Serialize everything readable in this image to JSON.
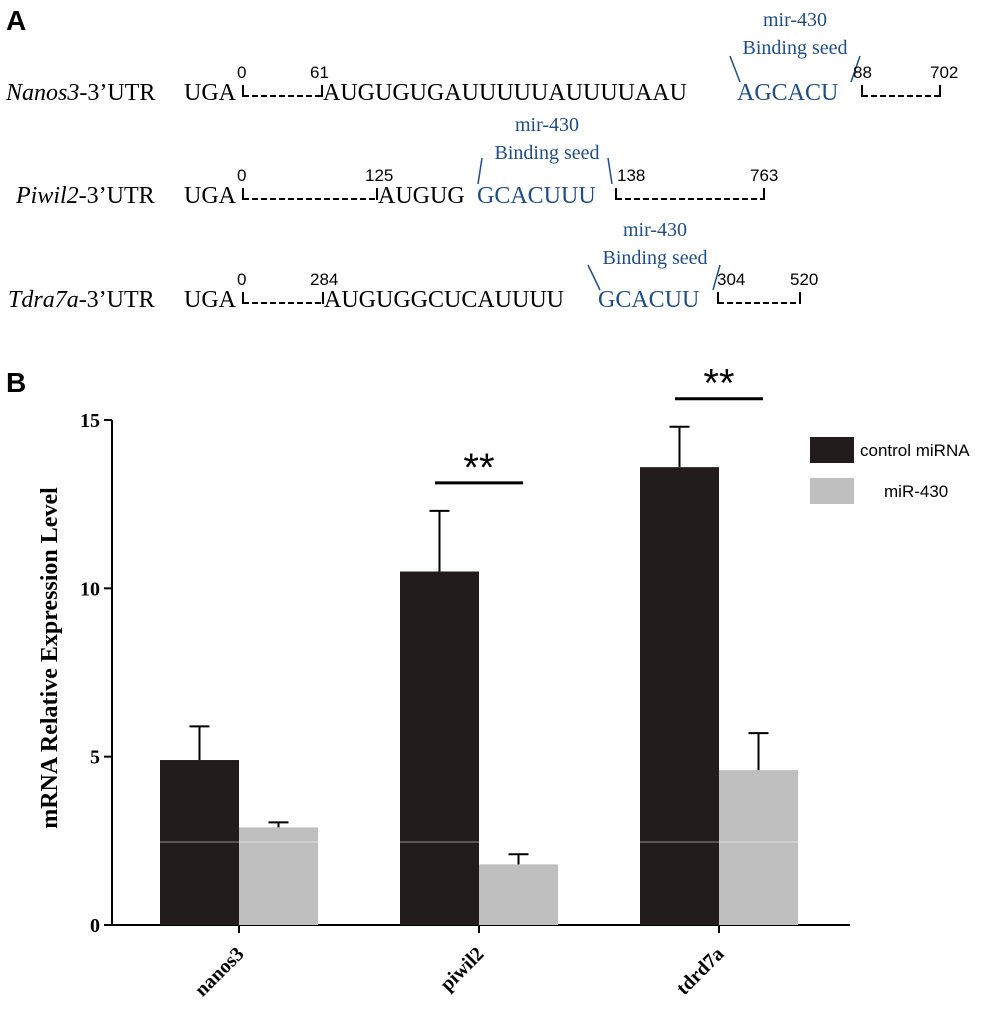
{
  "panel_a": {
    "label": "A",
    "rows": [
      {
        "gene": "Nanos3",
        "gene_suffix": "-3’UTR",
        "prefix": "UGA",
        "middle": "AUGUGUGAUUUUUAUUUUAAU",
        "seed": "AGCACU",
        "pos_start": "0",
        "pos_mid": "61",
        "pos_seed_end": "88",
        "pos_end": "702",
        "seed_label_1": "mir-430",
        "seed_label_2": "Binding seed"
      },
      {
        "gene": "Piwil2",
        "gene_suffix": "-3’UTR",
        "prefix": "UGA",
        "middle": "AUGUG",
        "seed": "GCACUUU",
        "pos_start": "0",
        "pos_mid": "125",
        "pos_seed_end": "138",
        "pos_end": "763",
        "seed_label_1": "mir-430",
        "seed_label_2": "Binding seed"
      },
      {
        "gene": "Tdra7a",
        "gene_suffix": "-3’UTR",
        "prefix": "UGA",
        "middle": "AUGUGGCUCAUUUU",
        "seed": "GCACUU",
        "pos_start": "0",
        "pos_mid": "284",
        "pos_seed_end": "304",
        "pos_end": "520",
        "seed_label_1": "mir-430",
        "seed_label_2": "Binding seed"
      }
    ]
  },
  "panel_b": {
    "label": "B"
  },
  "colors": {
    "control": "#231c1c",
    "mir430": "#bfbfbf",
    "seed": "#1f4e87"
  },
  "chart_data": {
    "type": "bar",
    "categories": [
      "nanos3",
      "piwil2",
      "tdrd7a"
    ],
    "series": [
      {
        "name": "control miRNA",
        "values": [
          4.9,
          10.5,
          13.6
        ],
        "errors": [
          1.0,
          1.8,
          1.2
        ]
      },
      {
        "name": "miR-430",
        "values": [
          2.9,
          1.8,
          4.6
        ],
        "errors": [
          0.15,
          0.3,
          1.1
        ]
      }
    ],
    "ylabel": "mRNA Relative Expression Level",
    "xlabel": "",
    "ylim": [
      0,
      15
    ],
    "yticks": [
      0,
      5,
      10,
      15
    ],
    "legend_position": "top-right",
    "significance": [
      {
        "category": "piwil2",
        "label": "**"
      },
      {
        "category": "tdrd7a",
        "label": "**"
      }
    ]
  }
}
